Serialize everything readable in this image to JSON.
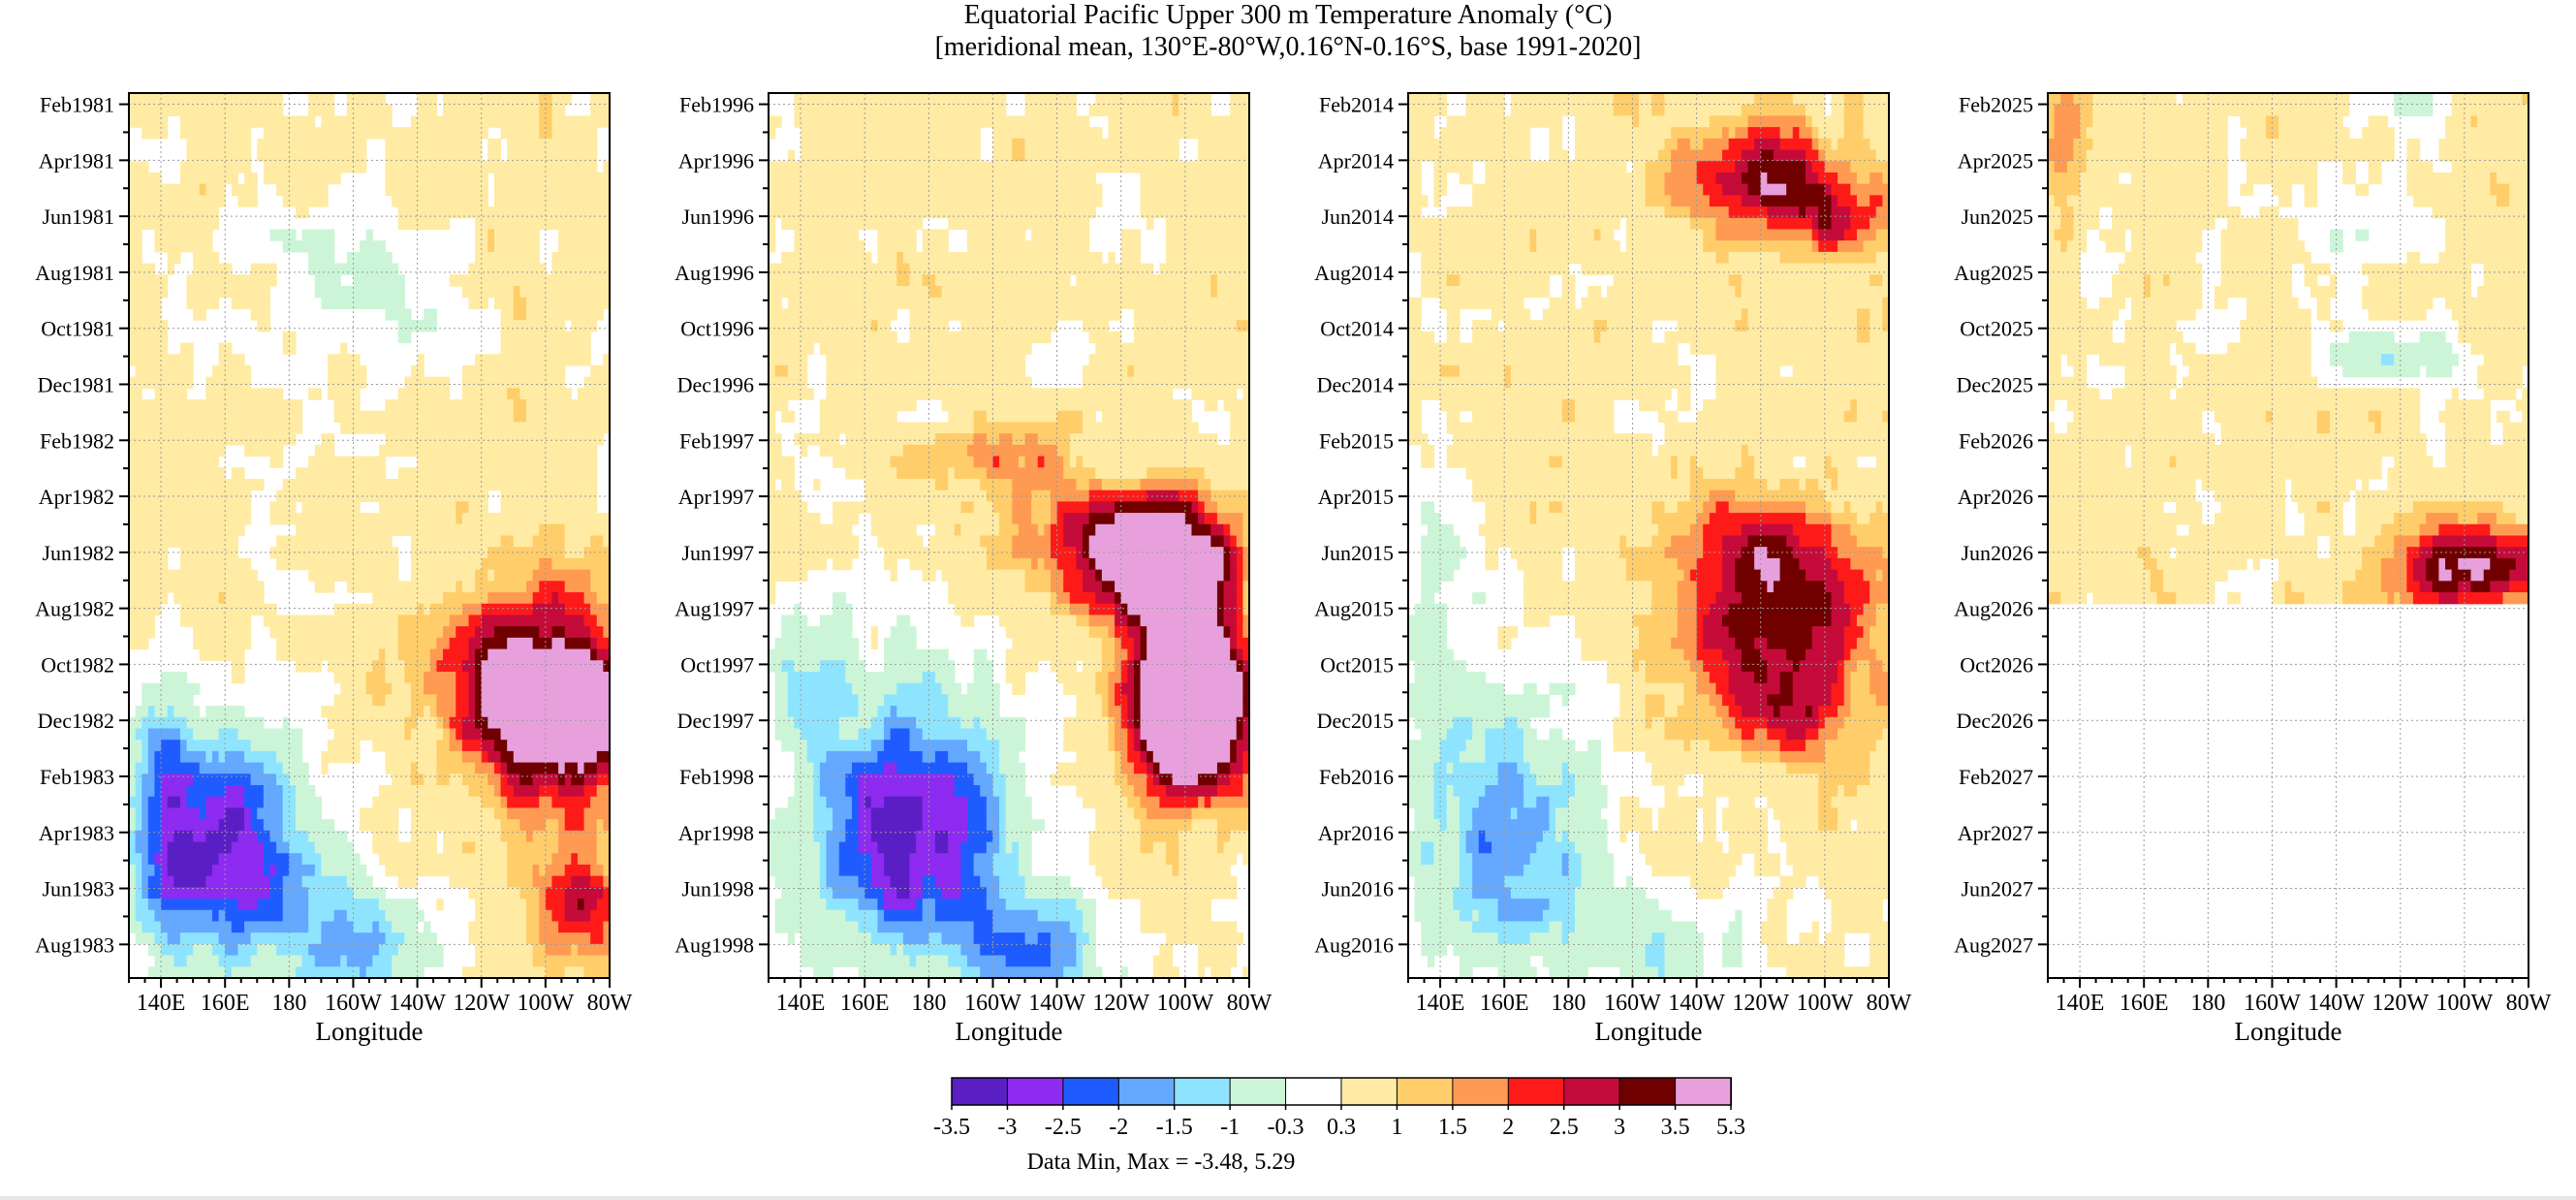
{
  "figure": {
    "title_line1": "Equatorial Pacific Upper 300 m Temperature Anomaly (°C)",
    "title_line2": "[meridional mean, 130°E-80°W,0.16°N-0.16°S, base 1991-2020]",
    "data_min_max": "Data Min, Max = -3.48, 5.29"
  },
  "colorbar": {
    "colors": [
      "#5a1fc4",
      "#8e2bf0",
      "#1f5cff",
      "#64a8ff",
      "#8ee4ff",
      "#ccf5d8",
      "#ffffff",
      "#ffeba3",
      "#ffcd6a",
      "#ff9a52",
      "#ff1a1a",
      "#c50b3a",
      "#700000",
      "#e8a0dc"
    ],
    "labels": [
      "-3.5",
      "-3",
      "-2.5",
      "-2",
      "-1.5",
      "-1",
      "-0.3",
      "0.3",
      "1",
      "1.5",
      "2",
      "2.5",
      "3",
      "3.5",
      "5.3"
    ]
  },
  "chart_data": [
    {
      "type": "heatmap",
      "xlabel": "Longitude",
      "x_ticks": [
        "140E",
        "160E",
        "180",
        "160W",
        "140W",
        "120W",
        "100W",
        "80W"
      ],
      "y_ticks": [
        "Feb1981",
        "Apr1981",
        "Jun1981",
        "Aug1981",
        "Oct1981",
        "Dec1981",
        "Feb1982",
        "Apr1982",
        "Jun1982",
        "Aug1982",
        "Oct1982",
        "Dec1982",
        "Feb1983",
        "Apr1983",
        "Jun1983",
        "Aug1983"
      ],
      "features": [
        {
          "kind": "warm",
          "lon": [
            230,
            280
          ],
          "t": [
            16,
            25
          ],
          "peak": 3.5
        },
        {
          "kind": "cool",
          "lon": [
            140,
            185
          ],
          "t": [
            22,
            30
          ],
          "peak": -3.0
        },
        {
          "kind": "warm",
          "lon": [
            265,
            280
          ],
          "t": [
            26,
            29
          ],
          "peak": 2.0
        },
        {
          "kind": "cool",
          "lon": [
            200,
            225
          ],
          "t": [
            5,
            7
          ],
          "peak": -1.5
        }
      ]
    },
    {
      "type": "heatmap",
      "xlabel": "Longitude",
      "x_ticks": [
        "140E",
        "160E",
        "180",
        "160W",
        "140W",
        "120W",
        "100W",
        "80W"
      ],
      "y_ticks": [
        "Feb1996",
        "Apr1996",
        "Jun1996",
        "Aug1996",
        "Oct1996",
        "Dec1996",
        "Feb1997",
        "Apr1997",
        "Jun1997",
        "Aug1997",
        "Oct1997",
        "Dec1997",
        "Feb1998",
        "Apr1998",
        "Jun1998",
        "Aug1998"
      ],
      "features": [
        {
          "kind": "warm",
          "lon": [
            200,
            280
          ],
          "t": [
            13,
            24
          ],
          "peak": 5.3
        },
        {
          "kind": "cool",
          "lon": [
            135,
            230
          ],
          "t": [
            19,
            31
          ],
          "peak": -3.5
        },
        {
          "kind": "warm",
          "lon": [
            175,
            215
          ],
          "t": [
            11,
            14
          ],
          "peak": 1.5
        }
      ]
    },
    {
      "type": "heatmap",
      "xlabel": "Longitude",
      "x_ticks": [
        "140E",
        "160E",
        "180",
        "160W",
        "140W",
        "120W",
        "100W",
        "80W"
      ],
      "y_ticks": [
        "Feb2014",
        "Apr2014",
        "Jun2014",
        "Aug2014",
        "Oct2014",
        "Dec2014",
        "Feb2015",
        "Apr2015",
        "Jun2015",
        "Aug2015",
        "Oct2015",
        "Dec2015",
        "Feb2016",
        "Apr2016",
        "Jun2016",
        "Aug2016"
      ],
      "features": [
        {
          "kind": "warm",
          "lon": [
            215,
            280
          ],
          "t": [
            0,
            5
          ],
          "peak": 2.5
        },
        {
          "kind": "warm",
          "lon": [
            205,
            280
          ],
          "t": [
            13,
            25
          ],
          "peak": 3.0
        },
        {
          "kind": "cool",
          "lon": [
            135,
            200
          ],
          "t": [
            20,
            31
          ],
          "peak": -2.0
        }
      ]
    },
    {
      "type": "heatmap",
      "xlabel": "Longitude",
      "x_ticks": [
        "140E",
        "160E",
        "180",
        "160W",
        "140W",
        "120W",
        "100W",
        "80W"
      ],
      "y_ticks": [
        "Feb2025",
        "Apr2025",
        "Jun2025",
        "Aug2025",
        "Oct2025",
        "Dec2025",
        "Feb2026",
        "Apr2026",
        "Jun2026",
        "Aug2026",
        "Oct2026",
        "Dec2026",
        "Feb2027",
        "Apr2027",
        "Jun2027",
        "Aug2027"
      ],
      "data_ends": "Jul2026",
      "features": [
        {
          "kind": "warm",
          "lon": [
            228,
            280
          ],
          "t": [
            14,
            18
          ],
          "peak": 3.5
        },
        {
          "kind": "warm",
          "lon": [
            130,
            140
          ],
          "t": [
            0,
            3
          ],
          "peak": 1.5
        },
        {
          "kind": "cool",
          "lon": [
            215,
            255
          ],
          "t": [
            8,
            10
          ],
          "peak": -2.0
        },
        {
          "kind": "cool",
          "lon": [
            230,
            260
          ],
          "t": [
            0,
            1
          ],
          "peak": -2.0
        }
      ]
    }
  ]
}
